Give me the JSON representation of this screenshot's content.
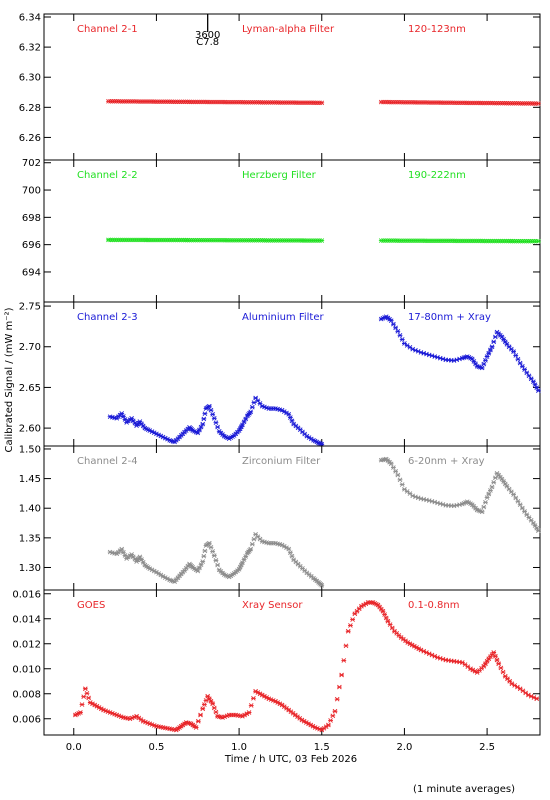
{
  "figure": {
    "ylabel": "Calibrated Signal / (mW m⁻²)",
    "xlabel": "Time / h UTC, 03 Feb 2026",
    "footnote": "(1 minute averages)",
    "marker": {
      "top": "3600",
      "bottom": "C7.8",
      "x": 0.81
    }
  },
  "chart_data": [
    {
      "type": "scatter",
      "labels": [
        "Channel 2-1",
        "Lyman-alpha Filter",
        "120-123nm"
      ],
      "color": "#e8262a",
      "ylim": [
        6.245,
        6.342
      ],
      "yticks": [
        6.26,
        6.28,
        6.3,
        6.32,
        6.34
      ],
      "tickfmt": 2,
      "segments": [
        {
          "x": [
            0.21,
            1.5
          ],
          "y": [
            6.284,
            6.283
          ]
        },
        {
          "x": [
            1.86,
            2.81
          ],
          "y": [
            6.2835,
            6.2825
          ]
        }
      ]
    },
    {
      "type": "scatter",
      "labels": [
        "Channel 2-2",
        "Herzberg Filter",
        "190-222nm"
      ],
      "color": "#22e022",
      "ylim": [
        691.8,
        702.2
      ],
      "yticks": [
        694,
        696,
        698,
        700,
        702
      ],
      "tickfmt": 0,
      "segments": [
        {
          "x": [
            0.21,
            1.5
          ],
          "y": [
            696.35,
            696.3
          ]
        },
        {
          "x": [
            1.86,
            2.81
          ],
          "y": [
            696.3,
            696.25
          ]
        }
      ]
    },
    {
      "type": "scatter",
      "labels": [
        "Channel 2-3",
        "Aluminium Filter",
        "17-80nm + Xray"
      ],
      "color": "#1a1ad6",
      "ylim": [
        2.578,
        2.755
      ],
      "yticks": [
        2.6,
        2.65,
        2.7,
        2.75
      ],
      "tickfmt": 2,
      "x": [
        0.22,
        0.26,
        0.29,
        0.32,
        0.35,
        0.38,
        0.4,
        0.43,
        0.46,
        0.5,
        0.54,
        0.58,
        0.61,
        0.64,
        0.67,
        0.7,
        0.72,
        0.75,
        0.78,
        0.8,
        0.82,
        0.85,
        0.88,
        0.91,
        0.94,
        0.97,
        1.0,
        1.02,
        1.05,
        1.07,
        1.1,
        1.14,
        1.18,
        1.22,
        1.26,
        1.3,
        1.33,
        1.37,
        1.41,
        1.45,
        1.48,
        1.5,
        1.86,
        1.89,
        1.92,
        1.96,
        2.0,
        2.05,
        2.1,
        2.15,
        2.2,
        2.25,
        2.3,
        2.35,
        2.38,
        2.41,
        2.44,
        2.47,
        2.5,
        2.53,
        2.56,
        2.59,
        2.62,
        2.66,
        2.7,
        2.74,
        2.78,
        2.81
      ],
      "y": [
        2.614,
        2.612,
        2.618,
        2.607,
        2.612,
        2.603,
        2.608,
        2.6,
        2.597,
        2.593,
        2.589,
        2.585,
        2.583,
        2.589,
        2.595,
        2.601,
        2.597,
        2.594,
        2.605,
        2.624,
        2.627,
        2.612,
        2.596,
        2.59,
        2.587,
        2.591,
        2.597,
        2.604,
        2.615,
        2.62,
        2.637,
        2.627,
        2.624,
        2.624,
        2.622,
        2.617,
        2.605,
        2.598,
        2.59,
        2.585,
        2.582,
        2.58,
        2.734,
        2.737,
        2.732,
        2.719,
        2.704,
        2.697,
        2.693,
        2.69,
        2.687,
        2.684,
        2.683,
        2.686,
        2.688,
        2.685,
        2.676,
        2.674,
        2.688,
        2.7,
        2.718,
        2.712,
        2.703,
        2.694,
        2.68,
        2.668,
        2.657,
        2.646
      ]
    },
    {
      "type": "scatter",
      "labels": [
        "Channel 2-4",
        "Zirconium Filter",
        "6-20nm + Xray"
      ],
      "color": "#8c8c8c",
      "ylim": [
        1.262,
        1.505
      ],
      "yticks": [
        1.3,
        1.35,
        1.4,
        1.45,
        1.5
      ],
      "tickfmt": 2,
      "x": [
        0.22,
        0.26,
        0.29,
        0.32,
        0.35,
        0.38,
        0.4,
        0.43,
        0.46,
        0.5,
        0.54,
        0.58,
        0.61,
        0.64,
        0.67,
        0.7,
        0.72,
        0.75,
        0.78,
        0.8,
        0.82,
        0.85,
        0.88,
        0.91,
        0.94,
        0.97,
        1.0,
        1.02,
        1.05,
        1.07,
        1.1,
        1.14,
        1.18,
        1.22,
        1.26,
        1.3,
        1.33,
        1.37,
        1.41,
        1.45,
        1.48,
        1.5,
        1.86,
        1.89,
        1.92,
        1.96,
        2.0,
        2.05,
        2.1,
        2.15,
        2.2,
        2.25,
        2.3,
        2.35,
        2.38,
        2.41,
        2.44,
        2.47,
        2.5,
        2.53,
        2.56,
        2.59,
        2.62,
        2.66,
        2.7,
        2.74,
        2.78,
        2.81
      ],
      "y": [
        1.326,
        1.323,
        1.331,
        1.315,
        1.322,
        1.31,
        1.318,
        1.304,
        1.298,
        1.292,
        1.285,
        1.279,
        1.276,
        1.286,
        1.295,
        1.306,
        1.3,
        1.294,
        1.31,
        1.337,
        1.341,
        1.32,
        1.296,
        1.288,
        1.284,
        1.29,
        1.297,
        1.308,
        1.324,
        1.331,
        1.356,
        1.344,
        1.341,
        1.341,
        1.338,
        1.331,
        1.313,
        1.302,
        1.291,
        1.282,
        1.275,
        1.27,
        1.481,
        1.483,
        1.475,
        1.456,
        1.432,
        1.421,
        1.416,
        1.413,
        1.409,
        1.405,
        1.404,
        1.407,
        1.411,
        1.406,
        1.397,
        1.394,
        1.418,
        1.436,
        1.459,
        1.449,
        1.437,
        1.423,
        1.406,
        1.389,
        1.375,
        1.362
      ]
    },
    {
      "type": "scatter",
      "labels": [
        "GOES",
        "Xray Sensor",
        "0.1-0.8nm"
      ],
      "color": "#e8262a",
      "ylim": [
        0.0047,
        0.0163
      ],
      "yticks": [
        0.006,
        0.008,
        0.01,
        0.012,
        0.014,
        0.016
      ],
      "tickfmt": 3,
      "x": [
        0.01,
        0.04,
        0.07,
        0.1,
        0.14,
        0.18,
        0.22,
        0.26,
        0.3,
        0.34,
        0.38,
        0.42,
        0.46,
        0.5,
        0.54,
        0.58,
        0.62,
        0.65,
        0.68,
        0.71,
        0.74,
        0.78,
        0.81,
        0.84,
        0.87,
        0.9,
        0.94,
        0.98,
        1.02,
        1.06,
        1.1,
        1.14,
        1.18,
        1.22,
        1.26,
        1.3,
        1.34,
        1.38,
        1.42,
        1.46,
        1.5,
        1.54,
        1.58,
        1.62,
        1.66,
        1.7,
        1.74,
        1.78,
        1.81,
        1.84,
        1.87,
        1.9,
        1.94,
        1.98,
        2.02,
        2.06,
        2.1,
        2.15,
        2.2,
        2.25,
        2.3,
        2.35,
        2.4,
        2.44,
        2.48,
        2.51,
        2.54,
        2.57,
        2.61,
        2.65,
        2.7,
        2.75,
        2.8
      ],
      "y": [
        0.0063,
        0.0065,
        0.0084,
        0.0073,
        0.007,
        0.0067,
        0.0065,
        0.0063,
        0.0061,
        0.006,
        0.0062,
        0.0058,
        0.0056,
        0.0054,
        0.0053,
        0.0052,
        0.0051,
        0.0054,
        0.0057,
        0.0056,
        0.0053,
        0.0068,
        0.0078,
        0.0072,
        0.0062,
        0.0061,
        0.0063,
        0.0063,
        0.0062,
        0.0065,
        0.0082,
        0.0079,
        0.0076,
        0.0074,
        0.0071,
        0.0067,
        0.0063,
        0.0059,
        0.0056,
        0.0053,
        0.0051,
        0.0055,
        0.0066,
        0.0095,
        0.013,
        0.0144,
        0.015,
        0.0153,
        0.0153,
        0.0151,
        0.0146,
        0.0138,
        0.013,
        0.0125,
        0.0121,
        0.0118,
        0.0115,
        0.0112,
        0.0109,
        0.0107,
        0.0106,
        0.0105,
        0.01,
        0.0097,
        0.0102,
        0.0108,
        0.0113,
        0.0104,
        0.0094,
        0.0088,
        0.0084,
        0.0079,
        0.0076
      ]
    }
  ],
  "xaxis": {
    "xlim": [
      -0.18,
      2.82
    ],
    "ticks": [
      "0.0",
      "0.5",
      "1.0",
      "1.5",
      "2.0",
      "2.5"
    ]
  }
}
